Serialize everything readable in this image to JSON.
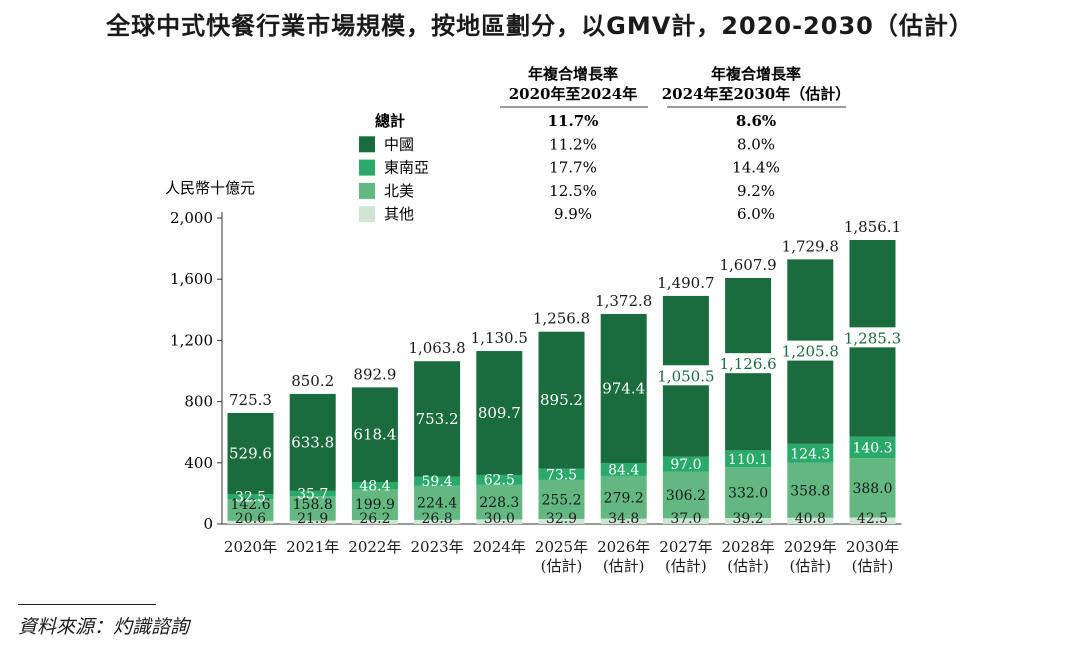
{
  "title": "全球中式快餐行業市場規模，按地區劃分，以GMV計，2020-2030（估計）",
  "source": "資料來源：灼識諮詢",
  "colors": {
    "china": "#1a6b3e",
    "sea": "#2aaa6a",
    "na": "#63b781",
    "other": "#cfe6d4"
  },
  "cagr_table": {
    "header1": [
      "年複合增長率",
      "2020年至2024年"
    ],
    "header2": [
      "年複合增長率",
      "2024年至2030年（估計）"
    ],
    "rows": [
      {
        "label": "總計",
        "v1": "11.7%",
        "v2": "8.6%",
        "key": "total"
      },
      {
        "label": "中國",
        "v1": "11.2%",
        "v2": "8.0%",
        "key": "china"
      },
      {
        "label": "東南亞",
        "v1": "17.7%",
        "v2": "14.4%",
        "key": "sea"
      },
      {
        "label": "北美",
        "v1": "12.5%",
        "v2": "9.2%",
        "key": "na"
      },
      {
        "label": "其他",
        "v1": "9.9%",
        "v2": "6.0%",
        "key": "other"
      }
    ]
  },
  "chart_data": {
    "type": "bar",
    "stacked": true,
    "title": "全球中式快餐行業市場規模，按地區劃分，以GMV計，2020-2030（估計）",
    "ylabel": "人民幣十億元",
    "ylim": [
      0,
      2000
    ],
    "yticks": [
      "0",
      "400",
      "800",
      "1,200",
      "1,600",
      "2,000"
    ],
    "ytick_values": [
      0,
      400,
      800,
      1200,
      1600,
      2000
    ],
    "categories": [
      [
        "2020年"
      ],
      [
        "2021年"
      ],
      [
        "2022年"
      ],
      [
        "2023年"
      ],
      [
        "2024年"
      ],
      [
        "2025年",
        "(估計)"
      ],
      [
        "2026年",
        "(估計)"
      ],
      [
        "2027年",
        "(估計)"
      ],
      [
        "2028年",
        "(估計)"
      ],
      [
        "2029年",
        "(估計)"
      ],
      [
        "2030年",
        "(估計)"
      ]
    ],
    "totals": [
      "725.3",
      "850.2",
      "892.9",
      "1,063.8",
      "1,130.5",
      "1,256.8",
      "1,372.8",
      "1,490.7",
      "1,607.9",
      "1,729.8",
      "1,856.1"
    ],
    "series": [
      {
        "name": "其他",
        "key": "other",
        "values": [
          20.6,
          21.9,
          26.2,
          26.8,
          30.0,
          32.9,
          34.8,
          37.0,
          39.2,
          40.8,
          42.5
        ]
      },
      {
        "name": "北美",
        "key": "na",
        "values": [
          142.6,
          158.8,
          199.9,
          224.4,
          228.3,
          255.2,
          279.2,
          306.2,
          332.0,
          358.8,
          388.0
        ]
      },
      {
        "name": "東南亞",
        "key": "sea",
        "values": [
          32.5,
          35.7,
          48.4,
          59.4,
          62.5,
          73.5,
          84.4,
          97.0,
          110.1,
          124.3,
          140.3
        ]
      },
      {
        "name": "中國",
        "key": "china",
        "values": [
          529.6,
          633.8,
          618.4,
          753.2,
          809.7,
          895.2,
          974.4,
          1050.5,
          1126.6,
          1205.8,
          1285.3
        ]
      }
    ]
  }
}
